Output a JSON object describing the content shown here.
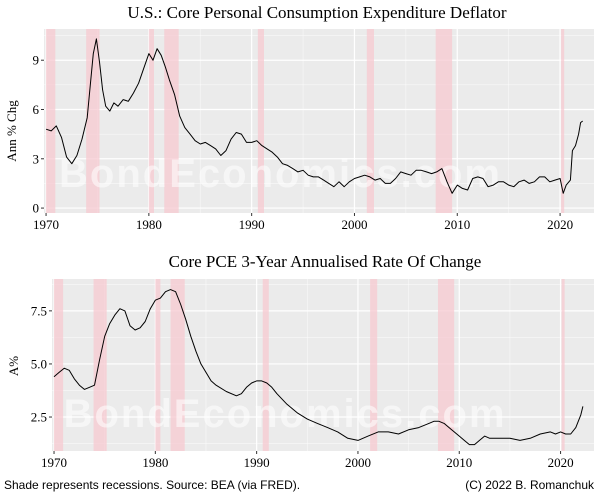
{
  "watermark": "BondEconomics.com",
  "footer": {
    "left": "Shade represents recessions. Source: BEA (via FRED).",
    "right": "(C) 2022 B. Romanchuk"
  },
  "colors": {
    "panel_background": "#ebebeb",
    "grid_major": "#ffffff",
    "recession_shade": "#f7c9d0",
    "line": "#000000"
  },
  "chart_data": [
    {
      "type": "line",
      "title": "U.S.: Core Personal Consumption Expenditure Deflator",
      "ylabel": "Ann % Chg",
      "xlabel": "",
      "xlim": [
        1969.8,
        2023.3
      ],
      "ylim": [
        -0.3,
        10.9
      ],
      "x_ticks": [
        1970,
        1980,
        1990,
        2000,
        2010,
        2020
      ],
      "x_tick_labels": [
        "1970",
        "1980",
        "1990",
        "2000",
        "2010",
        "2020"
      ],
      "y_ticks": [
        0,
        3,
        6,
        9
      ],
      "y_tick_labels": [
        "0",
        "3",
        "6",
        "9"
      ],
      "grid": true,
      "recessions": [
        [
          1970.0,
          1970.9
        ],
        [
          1973.9,
          1975.2
        ],
        [
          1980.0,
          1980.5
        ],
        [
          1981.5,
          1982.9
        ],
        [
          1990.6,
          1991.2
        ],
        [
          2001.2,
          2001.9
        ],
        [
          2007.9,
          2009.5
        ],
        [
          2020.1,
          2020.4
        ]
      ],
      "series": [
        {
          "x": [
            1970.0,
            1970.5,
            1971.0,
            1971.5,
            1972.0,
            1972.5,
            1973.0,
            1973.5,
            1974.0,
            1974.3,
            1974.6,
            1974.9,
            1975.2,
            1975.5,
            1975.8,
            1976.2,
            1976.6,
            1977.0,
            1977.5,
            1978.0,
            1978.5,
            1979.0,
            1979.5,
            1980.0,
            1980.4,
            1980.8,
            1981.2,
            1981.6,
            1982.0,
            1982.5,
            1983.0,
            1983.5,
            1984.0,
            1984.5,
            1985.0,
            1985.5,
            1986.0,
            1986.5,
            1987.0,
            1987.5,
            1988.0,
            1988.5,
            1989.0,
            1989.5,
            1990.0,
            1990.5,
            1991.0,
            1991.5,
            1992.0,
            1992.5,
            1993.0,
            1993.5,
            1994.0,
            1994.5,
            1995.0,
            1995.5,
            1996.0,
            1996.5,
            1997.0,
            1997.5,
            1998.0,
            1998.5,
            1999.0,
            1999.5,
            2000.0,
            2000.5,
            2001.0,
            2001.5,
            2002.0,
            2002.5,
            2003.0,
            2003.5,
            2004.0,
            2004.5,
            2005.0,
            2005.5,
            2006.0,
            2006.5,
            2007.0,
            2007.5,
            2008.0,
            2008.5,
            2009.0,
            2009.5,
            2010.0,
            2010.5,
            2011.0,
            2011.5,
            2012.0,
            2012.5,
            2013.0,
            2013.5,
            2014.0,
            2014.5,
            2015.0,
            2015.5,
            2016.0,
            2016.5,
            2017.0,
            2017.5,
            2018.0,
            2018.5,
            2019.0,
            2019.5,
            2020.0,
            2020.3,
            2020.6,
            2021.0,
            2021.2,
            2021.5,
            2021.8,
            2022.0,
            2022.2
          ],
          "y": [
            4.8,
            4.7,
            5.0,
            4.3,
            3.1,
            2.7,
            3.2,
            4.2,
            5.5,
            7.5,
            9.4,
            10.3,
            8.9,
            7.2,
            6.2,
            5.9,
            6.4,
            6.2,
            6.6,
            6.5,
            7.0,
            7.6,
            8.5,
            9.4,
            9.0,
            9.7,
            9.3,
            8.6,
            7.8,
            6.9,
            5.6,
            4.9,
            4.5,
            4.1,
            3.9,
            4.0,
            3.8,
            3.6,
            3.2,
            3.5,
            4.2,
            4.6,
            4.5,
            4.0,
            4.0,
            4.1,
            3.8,
            3.6,
            3.4,
            3.1,
            2.7,
            2.6,
            2.4,
            2.2,
            2.3,
            2.0,
            1.9,
            1.9,
            1.7,
            1.5,
            1.3,
            1.6,
            1.3,
            1.6,
            1.8,
            1.9,
            2.0,
            1.9,
            1.7,
            1.8,
            1.5,
            1.5,
            1.8,
            2.2,
            2.1,
            2.0,
            2.3,
            2.3,
            2.2,
            2.1,
            2.2,
            2.4,
            1.6,
            0.9,
            1.4,
            1.2,
            1.1,
            1.8,
            1.9,
            1.8,
            1.3,
            1.4,
            1.6,
            1.6,
            1.4,
            1.3,
            1.6,
            1.7,
            1.5,
            1.6,
            1.9,
            1.9,
            1.6,
            1.7,
            1.8,
            0.9,
            1.4,
            1.7,
            3.5,
            3.8,
            4.5,
            5.2,
            5.3
          ]
        }
      ]
    },
    {
      "type": "line",
      "title": "Core PCE 3-Year Annualised Rate Of Change",
      "ylabel": "A%",
      "xlabel": "",
      "xlim": [
        1969.8,
        2023.3
      ],
      "ylim": [
        0.9,
        9.0
      ],
      "x_ticks": [
        1970,
        1980,
        1990,
        2000,
        2010,
        2020
      ],
      "x_tick_labels": [
        "1970",
        "1980",
        "1990",
        "2000",
        "2010",
        "2020"
      ],
      "y_ticks": [
        2.5,
        5.0,
        7.5
      ],
      "y_tick_labels": [
        "2.5",
        "5.0",
        "7.5"
      ],
      "grid": true,
      "recessions": [
        [
          1970.0,
          1970.9
        ],
        [
          1973.9,
          1975.2
        ],
        [
          1980.0,
          1980.5
        ],
        [
          1981.5,
          1982.9
        ],
        [
          1990.6,
          1991.2
        ],
        [
          2001.2,
          2001.9
        ],
        [
          2007.9,
          2009.5
        ],
        [
          2020.1,
          2020.4
        ]
      ],
      "series": [
        {
          "x": [
            1970.0,
            1970.5,
            1971.0,
            1971.5,
            1972.0,
            1972.5,
            1973.0,
            1973.5,
            1974.0,
            1974.5,
            1975.0,
            1975.5,
            1976.0,
            1976.5,
            1977.0,
            1977.5,
            1978.0,
            1978.5,
            1979.0,
            1979.5,
            1980.0,
            1980.5,
            1981.0,
            1981.5,
            1982.0,
            1982.5,
            1983.0,
            1983.5,
            1984.0,
            1984.5,
            1985.0,
            1985.5,
            1986.0,
            1987.0,
            1988.0,
            1988.5,
            1989.0,
            1989.5,
            1990.0,
            1990.5,
            1991.0,
            1991.5,
            1992.0,
            1993.0,
            1994.0,
            1995.0,
            1996.0,
            1997.0,
            1998.0,
            1999.0,
            2000.0,
            2001.0,
            2002.0,
            2003.0,
            2004.0,
            2005.0,
            2006.0,
            2007.0,
            2007.5,
            2008.0,
            2008.5,
            2009.0,
            2009.5,
            2010.0,
            2010.5,
            2011.0,
            2011.5,
            2012.0,
            2012.5,
            2013.0,
            2014.0,
            2015.0,
            2016.0,
            2017.0,
            2018.0,
            2019.0,
            2019.5,
            2020.0,
            2020.5,
            2021.0,
            2021.5,
            2022.0,
            2022.2
          ],
          "y": [
            4.4,
            4.6,
            4.8,
            4.7,
            4.3,
            4.0,
            3.8,
            3.9,
            4.0,
            5.2,
            6.3,
            6.9,
            7.3,
            7.6,
            7.5,
            6.8,
            6.6,
            6.7,
            7.0,
            7.6,
            8.0,
            8.1,
            8.4,
            8.5,
            8.4,
            7.8,
            7.1,
            6.3,
            5.6,
            5.0,
            4.6,
            4.2,
            4.0,
            3.7,
            3.5,
            3.6,
            3.9,
            4.1,
            4.2,
            4.2,
            4.1,
            3.9,
            3.6,
            3.1,
            2.7,
            2.4,
            2.2,
            2.0,
            1.8,
            1.5,
            1.4,
            1.6,
            1.8,
            1.8,
            1.7,
            1.9,
            2.0,
            2.2,
            2.3,
            2.3,
            2.2,
            2.0,
            1.8,
            1.6,
            1.4,
            1.2,
            1.2,
            1.4,
            1.6,
            1.5,
            1.5,
            1.5,
            1.4,
            1.5,
            1.7,
            1.8,
            1.7,
            1.8,
            1.7,
            1.7,
            2.0,
            2.6,
            3.0
          ]
        }
      ]
    }
  ]
}
